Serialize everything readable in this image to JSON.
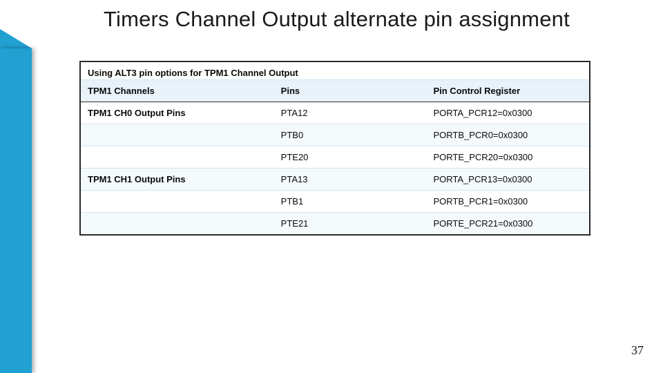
{
  "title": "Timers Channel Output alternate pin assignment",
  "page_number": "37",
  "accent_color": "#21a0d2",
  "table": {
    "caption": "Using ALT3 pin options for TPM1 Channel Output",
    "columns": [
      "TPM1 Channels",
      "Pins",
      "Pin Control Register"
    ],
    "rows": [
      {
        "channel": "TPM1 CH0 Output Pins",
        "pin": "PTA12",
        "reg": "PORTA_PCR12=0x0300"
      },
      {
        "channel": "",
        "pin": "PTB0",
        "reg": "PORTB_PCR0=0x0300"
      },
      {
        "channel": "",
        "pin": "PTE20",
        "reg": "PORTE_PCR20=0x0300"
      },
      {
        "channel": "TPM1 CH1 Output Pins",
        "pin": "PTA13",
        "reg": "PORTA_PCR13=0x0300"
      },
      {
        "channel": "",
        "pin": "PTB1",
        "reg": "PORTB_PCR1=0x0300"
      },
      {
        "channel": "",
        "pin": "PTE21",
        "reg": "PORTE_PCR21=0x0300"
      }
    ]
  }
}
